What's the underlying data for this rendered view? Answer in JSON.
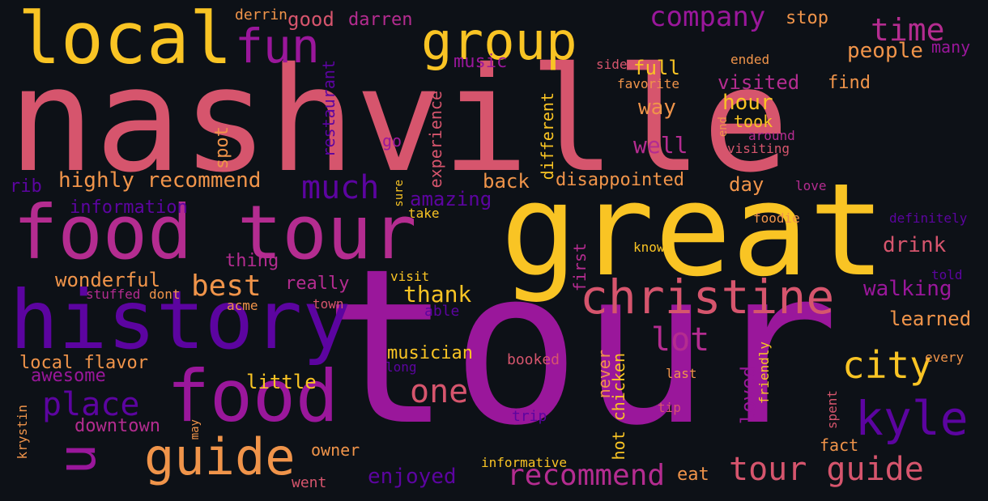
{
  "palette": {
    "background": "#0d1117",
    "yellow": "#f9c424",
    "orange": "#f0944a",
    "pink": "#d6556d",
    "magenta": "#b42c90",
    "purple": "#9a179b",
    "indigo": "#5c04a0"
  },
  "words": {
    "nashville": "nashville",
    "tour": "tour",
    "great": "great",
    "food_tour": "food tour",
    "history": "history",
    "food": "food",
    "local": "local",
    "group": "group",
    "fun": "fun",
    "guide": "guide",
    "christine": "christine",
    "kyle": "kyle",
    "tour_guide": "tour guide",
    "company": "company",
    "time": "time",
    "u": "u",
    "city": "city",
    "place": "place",
    "one": "one",
    "lot": "lot",
    "much": "much",
    "best": "best",
    "recommend": "recommend",
    "highly_recommend": "highly recommend",
    "people": "people",
    "good": "good",
    "darren": "darren",
    "derrin": "derrin",
    "stop": "stop",
    "many": "many",
    "music": "music",
    "full": "full",
    "side": "side",
    "ended": "ended",
    "favorite": "favorite",
    "visited": "visited",
    "find": "find",
    "way": "way",
    "hour": "hour",
    "took": "took",
    "around": "around",
    "visiting": "visiting",
    "end": "end",
    "well": "well",
    "go": "go",
    "restaurant": "restaurant",
    "experience": "experience",
    "different": "different",
    "spot": "spot",
    "rib": "rib",
    "back": "back",
    "disappointed": "disappointed",
    "day": "day",
    "love": "love",
    "amazing": "amazing",
    "information": "information",
    "sure": "sure",
    "take": "take",
    "foodie": "foodie",
    "definitely": "definitely",
    "drink": "drink",
    "know": "know",
    "first": "first",
    "thing": "thing",
    "wonderful": "wonderful",
    "visit": "visit",
    "really": "really",
    "told": "told",
    "stuffed": "stuffed",
    "dont": "dont",
    "walking": "walking",
    "thank": "thank",
    "able": "able",
    "acme": "acme",
    "town": "town",
    "learned": "learned",
    "local_flavor": "local flavor",
    "musician": "musician",
    "long": "long",
    "booked": "booked",
    "never": "never",
    "hot_chicken": "hot chicken",
    "loved": "loved",
    "friendly": "friendly",
    "last": "last",
    "every": "every",
    "awesome": "awesome",
    "little": "little",
    "downtown": "downtown",
    "trip": "trip",
    "tip": "tip",
    "spent": "spent",
    "krystin": "krystin",
    "may": "may",
    "owner": "owner",
    "fact": "fact",
    "enjoyed": "enjoyed",
    "informative": "informative",
    "eat": "eat",
    "went": "went"
  }
}
